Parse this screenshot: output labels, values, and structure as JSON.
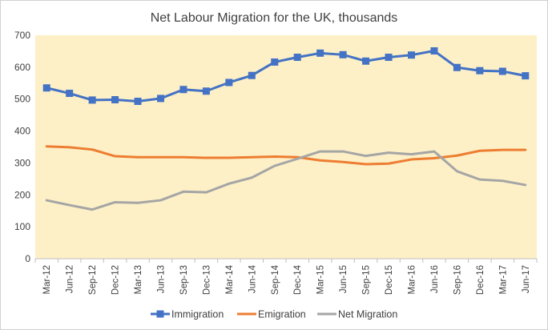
{
  "chart_data": {
    "type": "line",
    "title": "Net Labour Migration for the UK, thousands",
    "xlabel": "",
    "ylabel": "",
    "ylim": [
      0,
      700
    ],
    "yticks": [
      "0",
      "100",
      "200",
      "300",
      "400",
      "500",
      "600",
      "700"
    ],
    "background_color": "#fdf0c7",
    "grid": false,
    "legend_position": "bottom",
    "categories": [
      "Mar-12",
      "Jun-12",
      "Sep-12",
      "Dec-12",
      "Mar-13",
      "Jun-13",
      "Sep-13",
      "Dec-13",
      "Mar-14",
      "Jun-14",
      "Sep-14",
      "Dec-14",
      "Mar-15",
      "Jun-15",
      "Sep-15",
      "Dec-15",
      "Mar-16",
      "Jun-16",
      "Sep-16",
      "Dec-16",
      "Mar-17",
      "Jun-17"
    ],
    "series": [
      {
        "name": "Immigration",
        "color": "#4472c4",
        "marker": "square",
        "values": [
          535,
          518,
          497,
          498,
          493,
          502,
          530,
          525,
          552,
          574,
          616,
          631,
          644,
          639,
          619,
          631,
          638,
          651,
          599,
          589,
          587,
          573
        ]
      },
      {
        "name": "Emigration",
        "color": "#ed7d31",
        "marker": "none",
        "values": [
          352,
          349,
          342,
          321,
          318,
          318,
          318,
          316,
          316,
          318,
          320,
          318,
          308,
          303,
          296,
          298,
          311,
          315,
          323,
          338,
          341,
          341
        ]
      },
      {
        "name": "Net Migration",
        "color": "#a5a5a5",
        "marker": "none",
        "values": [
          183,
          168,
          154,
          177,
          175,
          183,
          210,
          208,
          235,
          254,
          291,
          313,
          336,
          336,
          322,
          332,
          327,
          336,
          274,
          248,
          244,
          231
        ]
      }
    ]
  }
}
